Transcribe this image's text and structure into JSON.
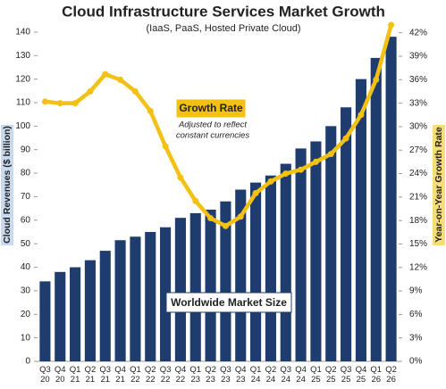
{
  "chart_data": {
    "type": "bar_line",
    "title": "Cloud Infrastructure Services Market Growth",
    "subtitle": "(IaaS, PaaS, Hosted Private Cloud)",
    "y_label": "Cloud Revenues ($ billion)",
    "y2_label": "Year-on-Year Growth Rate",
    "annotations": [
      "Growth Rate",
      "Adjusted to reflect",
      "constant currencies",
      "Worldwide Market Size"
    ],
    "categories": [
      "Q3 20",
      "Q4 20",
      "Q1 21",
      "Q2 21",
      "Q3 21",
      "Q4 21",
      "Q1 22",
      "Q2 22",
      "Q3 22",
      "Q4 22",
      "Q1 23",
      "Q2 23",
      "Q3 23",
      "Q4 23",
      "Q1 24",
      "Q2 24",
      "Q3 24",
      "Q4 24",
      "Q1 25",
      "Q2 25",
      "Q3 25",
      "Q4 25",
      "Q1 26",
      "Q2 26"
    ],
    "series": [
      {
        "name": "Worldwide Market Size",
        "type": "bar",
        "color": "#1f3c6e",
        "values": [
          34,
          38,
          40,
          43,
          47,
          51.5,
          53,
          55,
          57,
          61,
          63,
          64.5,
          68,
          73,
          76,
          79,
          84,
          90.5,
          93.5,
          100,
          108,
          120,
          129,
          138
        ]
      },
      {
        "name": "Growth Rate",
        "type": "line",
        "axis": "y2",
        "color": "#f2c114",
        "values": [
          33.2,
          33,
          33,
          34.5,
          36.7,
          36,
          34.5,
          32,
          27.5,
          23.5,
          20.5,
          18.3,
          17.3,
          18.5,
          21.5,
          23,
          24,
          24.5,
          25.5,
          26.5,
          28.5,
          31.5,
          36,
          43
        ]
      }
    ],
    "ylim": [
      0,
      143
    ],
    "yticks": [
      0,
      10,
      20,
      30,
      40,
      50,
      60,
      70,
      80,
      90,
      100,
      110,
      120,
      130,
      140
    ],
    "y2lim": [
      0,
      43
    ],
    "y2ticks": [
      {
        "value": 0,
        "label": "0%"
      },
      {
        "value": 3,
        "label": "3%"
      },
      {
        "value": 6,
        "label": "6%"
      },
      {
        "value": 9,
        "label": "9%"
      },
      {
        "value": 12,
        "label": "12%"
      },
      {
        "value": 15,
        "label": "15%"
      },
      {
        "value": 18,
        "label": "18%"
      },
      {
        "value": 21,
        "label": "21%"
      },
      {
        "value": 24,
        "label": "24%"
      },
      {
        "value": 27,
        "label": "27%"
      },
      {
        "value": 30,
        "label": "30%"
      },
      {
        "value": 33,
        "label": "33%"
      },
      {
        "value": 36,
        "label": "36%"
      },
      {
        "value": 39,
        "label": "39%"
      },
      {
        "value": 42,
        "label": "42%"
      }
    ],
    "grid": false
  }
}
